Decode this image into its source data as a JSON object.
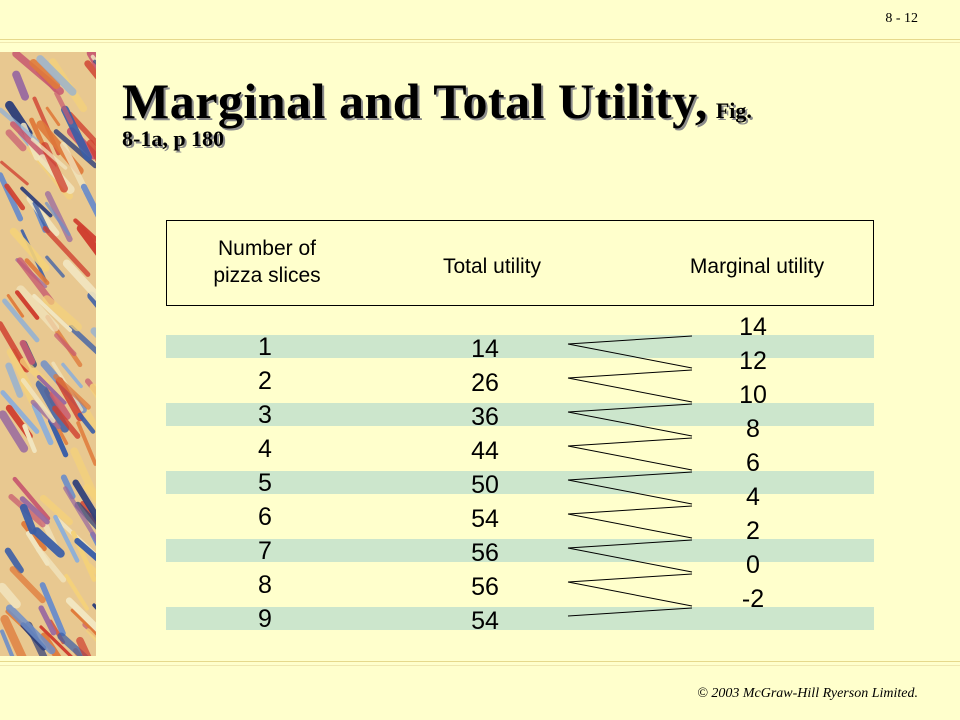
{
  "page_number": "8 - 12",
  "title": {
    "main": "Marginal and Total Utility,",
    "ref_line1": "Fig.",
    "ref_line2": "8-1a, p 180"
  },
  "table": {
    "headers": {
      "slices_line1": "Number of",
      "slices_line2": "pizza slices",
      "total": "Total utility",
      "marginal": "Marginal utility"
    },
    "slices": [
      "1",
      "2",
      "3",
      "4",
      "5",
      "6",
      "7",
      "8",
      "9"
    ],
    "total_utility": [
      "14",
      "26",
      "36",
      "44",
      "50",
      "54",
      "56",
      "56",
      "54"
    ],
    "marginal_utility": [
      "14",
      "12",
      "10",
      "8",
      "6",
      "4",
      "2",
      "0",
      "-2"
    ]
  },
  "footer": "© 2003 McGraw-Hill Ryerson Limited.",
  "colors": {
    "background": "#ffffcc",
    "stripe": "#cce6cc",
    "rule": "#e6d98c"
  }
}
